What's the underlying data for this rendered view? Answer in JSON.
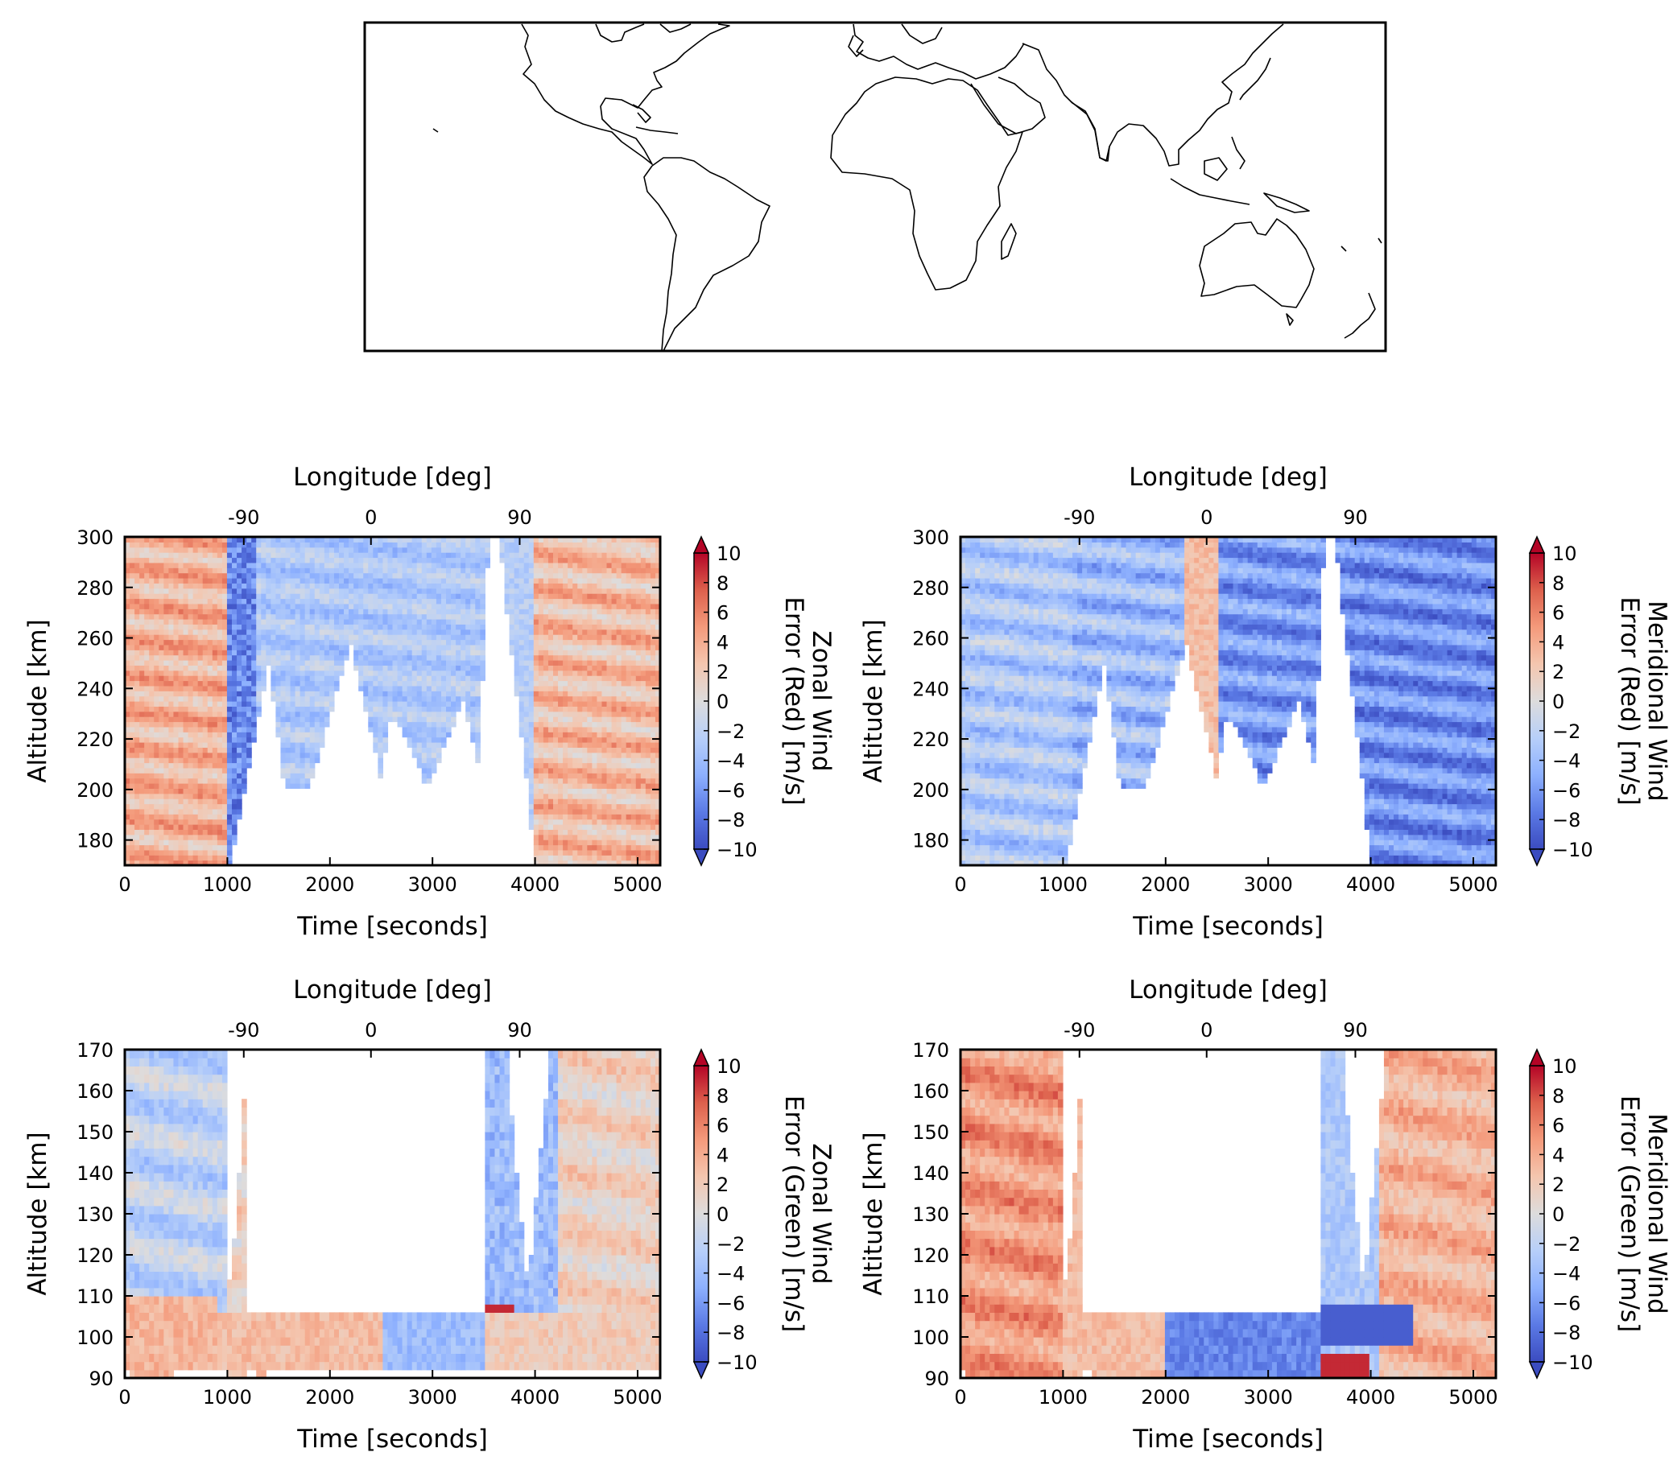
{
  "map": {},
  "chart_data": [
    {
      "type": "heatmap",
      "xlabel": "Time [seconds]",
      "ylabel": "Altitude [km]",
      "top_xlabel": "Longitude [deg]",
      "xlim": [
        0,
        5220
      ],
      "ylim": [
        170,
        300
      ],
      "xticks": [
        0,
        1000,
        2000,
        3000,
        4000,
        5000
      ],
      "yticks": [
        180,
        200,
        220,
        240,
        260,
        280,
        300
      ],
      "top_ticks": [
        {
          "label": "-90",
          "x": 1160
        },
        {
          "label": "0",
          "x": 2400
        },
        {
          "label": "90",
          "x": 3850
        }
      ],
      "colorbar": {
        "label_lines": [
          "Zonal Wind",
          "Error (Red) [m/s]"
        ],
        "ticks": [
          10,
          8,
          6,
          4,
          2,
          0,
          -2,
          -4,
          -6,
          -8,
          -10
        ],
        "vmin": -10,
        "vmax": 10,
        "cmap": "coolwarm",
        "extend": "both"
      },
      "grid": false
    },
    {
      "type": "heatmap",
      "xlabel": "Time [seconds]",
      "ylabel": "Altitude [km]",
      "top_xlabel": "Longitude [deg]",
      "xlim": [
        0,
        5220
      ],
      "ylim": [
        170,
        300
      ],
      "xticks": [
        0,
        1000,
        2000,
        3000,
        4000,
        5000
      ],
      "yticks": [
        180,
        200,
        220,
        240,
        260,
        280,
        300
      ],
      "top_ticks": [
        {
          "label": "-90",
          "x": 1160
        },
        {
          "label": "0",
          "x": 2400
        },
        {
          "label": "90",
          "x": 3850
        }
      ],
      "colorbar": {
        "label_lines": [
          "Meridional Wind",
          "Error (Red) [m/s]"
        ],
        "ticks": [
          10,
          8,
          6,
          4,
          2,
          0,
          -2,
          -4,
          -6,
          -8,
          -10
        ],
        "vmin": -10,
        "vmax": 10,
        "cmap": "coolwarm",
        "extend": "both"
      },
      "grid": false
    },
    {
      "type": "heatmap",
      "xlabel": "Time [seconds]",
      "ylabel": "Altitude [km]",
      "top_xlabel": "Longitude [deg]",
      "xlim": [
        0,
        5220
      ],
      "ylim": [
        90,
        170
      ],
      "xticks": [
        0,
        1000,
        2000,
        3000,
        4000,
        5000
      ],
      "yticks": [
        90,
        100,
        110,
        120,
        130,
        140,
        150,
        160,
        170
      ],
      "top_ticks": [
        {
          "label": "-90",
          "x": 1160
        },
        {
          "label": "0",
          "x": 2400
        },
        {
          "label": "90",
          "x": 3850
        }
      ],
      "colorbar": {
        "label_lines": [
          "Zonal Wind",
          "Error (Green) [m/s]"
        ],
        "ticks": [
          10,
          8,
          6,
          4,
          2,
          0,
          -2,
          -4,
          -6,
          -8,
          -10
        ],
        "vmin": -10,
        "vmax": 10,
        "cmap": "coolwarm",
        "extend": "both"
      },
      "grid": false
    },
    {
      "type": "heatmap",
      "xlabel": "Time [seconds]",
      "ylabel": "Altitude [km]",
      "top_xlabel": "Longitude [deg]",
      "xlim": [
        0,
        5220
      ],
      "ylim": [
        90,
        170
      ],
      "xticks": [
        0,
        1000,
        2000,
        3000,
        4000,
        5000
      ],
      "yticks": [
        90,
        100,
        110,
        120,
        130,
        140,
        150,
        160,
        170
      ],
      "top_ticks": [
        {
          "label": "-90",
          "x": 1160
        },
        {
          "label": "0",
          "x": 2400
        },
        {
          "label": "90",
          "x": 3850
        }
      ],
      "colorbar": {
        "label_lines": [
          "Meridional Wind",
          "Error (Green) [m/s]"
        ],
        "ticks": [
          10,
          8,
          6,
          4,
          2,
          0,
          -2,
          -4,
          -6,
          -8,
          -10
        ],
        "vmin": -10,
        "vmax": 10,
        "cmap": "coolwarm",
        "extend": "both"
      },
      "grid": false
    }
  ]
}
